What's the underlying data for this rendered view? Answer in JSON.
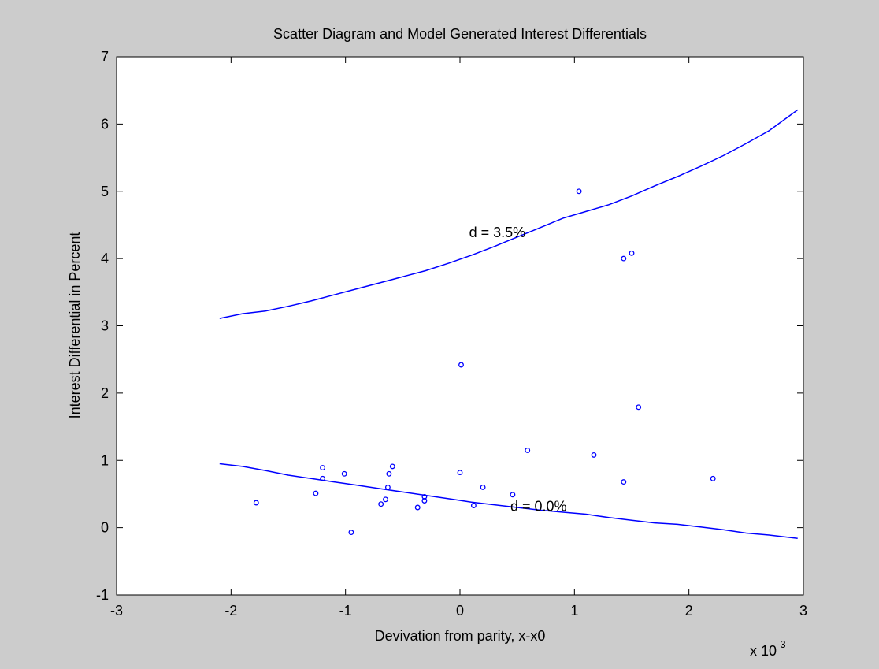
{
  "chart_data": {
    "type": "scatter",
    "title": "Scatter Diagram and Model Generated Interest Differentials",
    "xlabel": "Devivation from parity,  x-x0",
    "ylabel": "Interest Differential in Percent",
    "x_multiplier_label": "x 10",
    "x_multiplier_exponent": "-3",
    "xlim": [
      -3,
      3
    ],
    "ylim": [
      -1,
      7
    ],
    "xticks": [
      -3,
      -2,
      -1,
      0,
      1,
      2,
      3
    ],
    "yticks": [
      -1,
      0,
      1,
      2,
      3,
      4,
      5,
      6,
      7
    ],
    "xtick_labels": [
      "-3",
      "-2",
      "-1",
      "0",
      "1",
      "2",
      "3"
    ],
    "ytick_labels": [
      "-1",
      "0",
      "1",
      "2",
      "3",
      "4",
      "5",
      "6",
      "7"
    ],
    "grid": false,
    "color": "#0000ff",
    "scatter": {
      "x": [
        -1.78,
        -1.26,
        -1.2,
        -1.2,
        -1.01,
        -0.95,
        -0.69,
        -0.65,
        -0.63,
        -0.62,
        -0.59,
        -0.37,
        -0.31,
        -0.31,
        0.0,
        0.01,
        0.12,
        0.2,
        0.46,
        0.59,
        1.04,
        1.17,
        1.43,
        1.43,
        1.5,
        1.56,
        2.21
      ],
      "y": [
        0.37,
        0.51,
        0.73,
        0.89,
        0.8,
        -0.07,
        0.35,
        0.42,
        0.6,
        0.8,
        0.91,
        0.3,
        0.46,
        0.4,
        0.82,
        2.42,
        0.33,
        0.6,
        0.49,
        1.15,
        5.0,
        1.08,
        4.0,
        0.68,
        4.08,
        1.79,
        0.73
      ]
    },
    "series": [
      {
        "name": "d = 3.5%",
        "x": [
          -2.1,
          -1.9,
          -1.7,
          -1.5,
          -1.3,
          -1.1,
          -0.9,
          -0.7,
          -0.5,
          -0.3,
          -0.1,
          0.1,
          0.3,
          0.5,
          0.7,
          0.9,
          1.1,
          1.3,
          1.5,
          1.7,
          1.9,
          2.1,
          2.3,
          2.5,
          2.7,
          2.95
        ],
        "y": [
          3.11,
          3.18,
          3.22,
          3.29,
          3.37,
          3.46,
          3.55,
          3.64,
          3.73,
          3.82,
          3.93,
          4.05,
          4.18,
          4.32,
          4.46,
          4.6,
          4.7,
          4.8,
          4.93,
          5.08,
          5.22,
          5.37,
          5.53,
          5.71,
          5.9,
          6.21
        ]
      },
      {
        "name": "d = 0.0%",
        "x": [
          -2.1,
          -1.9,
          -1.7,
          -1.5,
          -1.3,
          -1.1,
          -0.9,
          -0.7,
          -0.5,
          -0.3,
          -0.1,
          0.1,
          0.3,
          0.5,
          0.7,
          0.9,
          1.1,
          1.3,
          1.5,
          1.7,
          1.9,
          2.1,
          2.3,
          2.5,
          2.7,
          2.95
        ],
        "y": [
          0.95,
          0.91,
          0.85,
          0.78,
          0.73,
          0.68,
          0.63,
          0.58,
          0.53,
          0.48,
          0.43,
          0.38,
          0.34,
          0.3,
          0.26,
          0.23,
          0.2,
          0.15,
          0.11,
          0.07,
          0.05,
          0.01,
          -0.03,
          -0.08,
          -0.11,
          -0.16
        ]
      }
    ],
    "annotations": [
      {
        "text": "d = 3.5%",
        "x": 0.08,
        "y": 4.32
      },
      {
        "text": "d = 0.0%",
        "x": 0.44,
        "y": 0.25
      }
    ]
  }
}
